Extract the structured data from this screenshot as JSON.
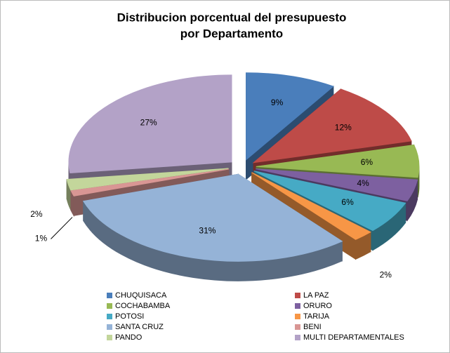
{
  "chart_data": {
    "type": "pie3d",
    "title": [
      "Distribucion porcentual del presupuesto",
      "por Departamento"
    ],
    "categories": [
      "CHUQUISACA",
      "LA PAZ",
      "COCHABAMBA",
      "ORURO",
      "POTOSI",
      "TARIJA",
      "SANTA CRUZ",
      "BENI",
      "PANDO",
      "MULTI DEPARTAMENTALES"
    ],
    "values": [
      9,
      12,
      6,
      4,
      6,
      2,
      31,
      1,
      2,
      27
    ],
    "value_labels": [
      "9%",
      "12%",
      "6%",
      "4%",
      "6%",
      "2%",
      "31%",
      "1%",
      "2%",
      "27%"
    ],
    "colors": [
      "#4a7ebb",
      "#be4b48",
      "#98b954",
      "#7d60a0",
      "#46aac5",
      "#f79646",
      "#95b3d7",
      "#d99694",
      "#c3d69b",
      "#b3a2c7"
    ],
    "legend": "bottom"
  }
}
